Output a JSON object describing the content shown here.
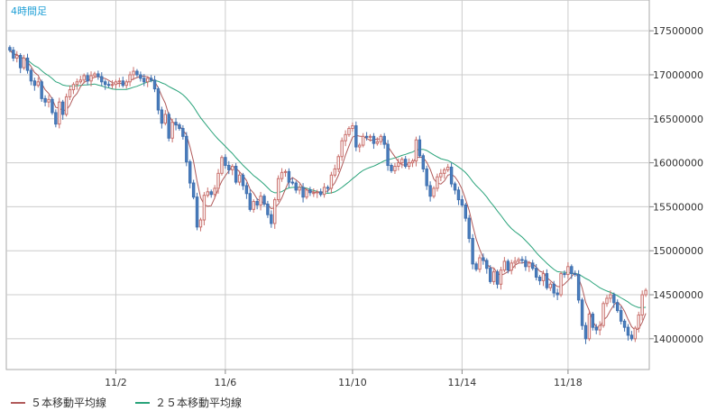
{
  "chart_data": {
    "type": "candlestick",
    "timeframe_label": "4時間足",
    "x_tick_labels": [
      "11/2",
      "11/6",
      "11/10",
      "11/14",
      "11/18"
    ],
    "x_tick_index": [
      30,
      61,
      97,
      128,
      158
    ],
    "y_ticks": [
      14000000,
      14500000,
      15000000,
      15500000,
      16000000,
      16500000,
      17000000,
      17500000
    ],
    "ylim": [
      13650000,
      17850000
    ],
    "legend": [
      "５本移動平均線",
      "２５本移動平均線"
    ],
    "colors": {
      "up": "#e8a7a4",
      "down": "#4a7fbf",
      "ma5": "#b05a5a",
      "ma25": "#29a37a",
      "grid": "#cccccc"
    },
    "grid": true,
    "close": [
      17280000,
      17190000,
      17220000,
      17080000,
      17190000,
      17050000,
      16930000,
      16880000,
      16920000,
      16730000,
      16690000,
      16720000,
      16570000,
      16440000,
      16690000,
      16550000,
      16750000,
      16830000,
      16890000,
      16920000,
      16940000,
      16990000,
      16930000,
      16990000,
      17010000,
      16980000,
      16920000,
      16890000,
      16880000,
      16890000,
      16920000,
      16930000,
      16880000,
      16920000,
      17000000,
      17040000,
      17000000,
      16960000,
      16920000,
      16960000,
      16940000,
      16840000,
      16600000,
      16450000,
      16550000,
      16280000,
      16460000,
      16430000,
      16390000,
      16300000,
      16010000,
      15770000,
      15610000,
      15270000,
      15350000,
      15630000,
      15670000,
      15640000,
      15710000,
      15880000,
      16060000,
      15970000,
      15920000,
      15960000,
      15780000,
      15860000,
      15740000,
      15650000,
      15470000,
      15560000,
      15520000,
      15620000,
      15530000,
      15410000,
      15310000,
      15580000,
      15820000,
      15890000,
      15900000,
      15780000,
      15770000,
      15690000,
      15720000,
      15610000,
      15690000,
      15660000,
      15660000,
      15670000,
      15640000,
      15720000,
      15710000,
      15860000,
      15930000,
      16070000,
      16250000,
      16320000,
      16390000,
      16420000,
      16180000,
      16200000,
      16300000,
      16290000,
      16300000,
      16220000,
      16240000,
      16300000,
      16210000,
      15970000,
      15910000,
      15960000,
      16000000,
      16040000,
      15960000,
      16000000,
      16020000,
      16260000,
      16080000,
      15930000,
      15740000,
      15620000,
      15710000,
      15840000,
      15880000,
      15920000,
      15950000,
      15760000,
      15690000,
      15580000,
      15520000,
      15370000,
      15140000,
      14850000,
      14790000,
      14920000,
      14890000,
      14800000,
      14650000,
      14760000,
      14620000,
      14780000,
      14880000,
      14780000,
      14860000,
      14880000,
      14900000,
      14890000,
      14820000,
      14860000,
      14800000,
      14700000,
      14660000,
      14740000,
      14580000,
      14620000,
      14520000,
      14500000,
      14740000,
      14730000,
      14820000,
      14740000,
      14730000,
      14440000,
      14150000,
      14000000,
      14280000,
      14130000,
      14100000,
      14150000,
      14400000,
      14460000,
      14500000,
      14410000,
      14320000,
      14200000,
      14130000,
      14040000,
      14000000,
      14120000,
      14270000,
      14500000,
      14550000
    ]
  }
}
